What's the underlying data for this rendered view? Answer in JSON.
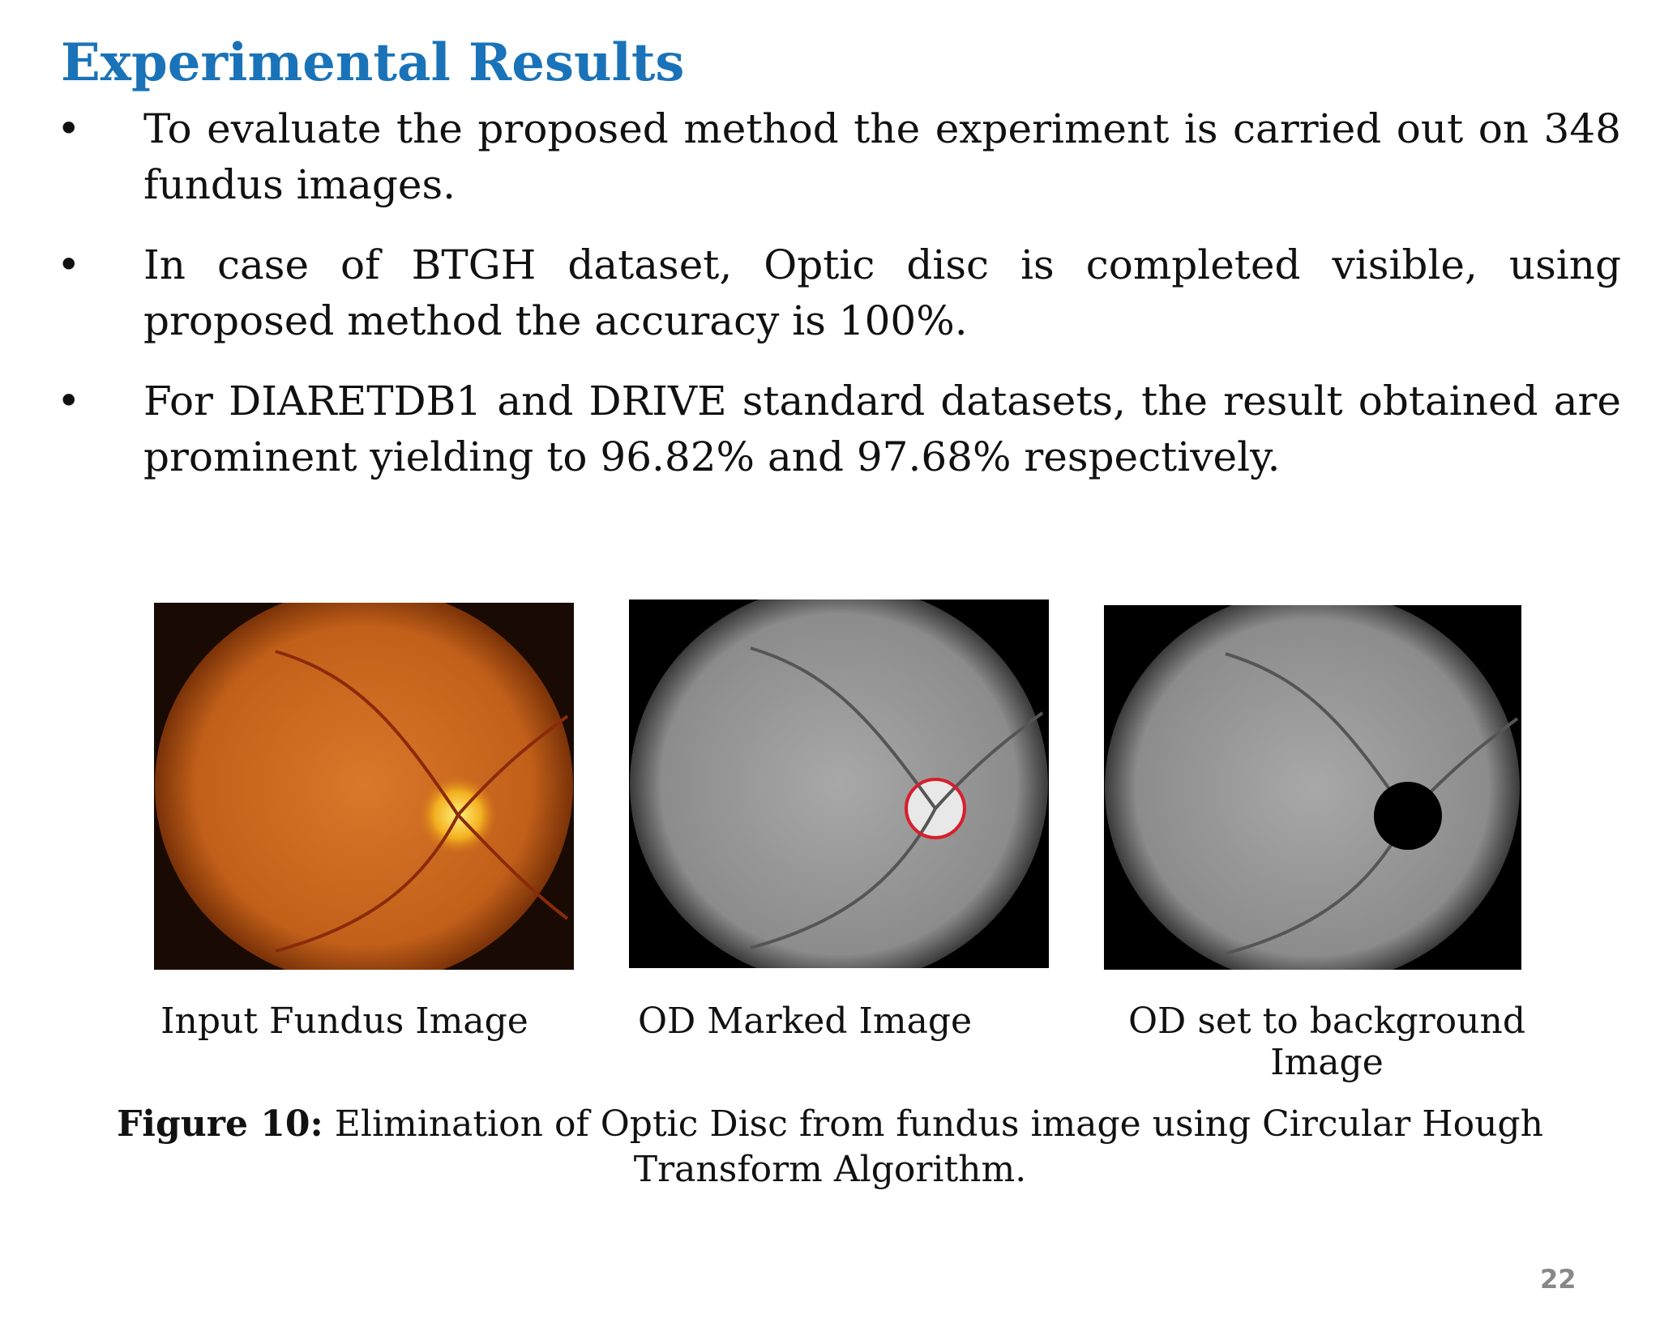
{
  "header": {
    "title": "Experimental Results"
  },
  "bullets": [
    "To evaluate the proposed method the experiment is carried out on 348 fundus images.",
    "In case of BTGH dataset, Optic disc is completed visible, using proposed method the accuracy is 100%.",
    "For DIARETDB1 and DRIVE standard datasets, the result obtained are prominent yielding to 96.82% and 97.68% respectively."
  ],
  "figure": {
    "images": [
      {
        "caption": "Input Fundus Image"
      },
      {
        "caption": "OD Marked Image"
      },
      {
        "caption": "OD set to background Image"
      }
    ],
    "label": "Figure 10:",
    "caption": "Elimination of Optic Disc from fundus image using Circular Hough Transform Algorithm."
  },
  "footer": {
    "page_number": "22"
  }
}
